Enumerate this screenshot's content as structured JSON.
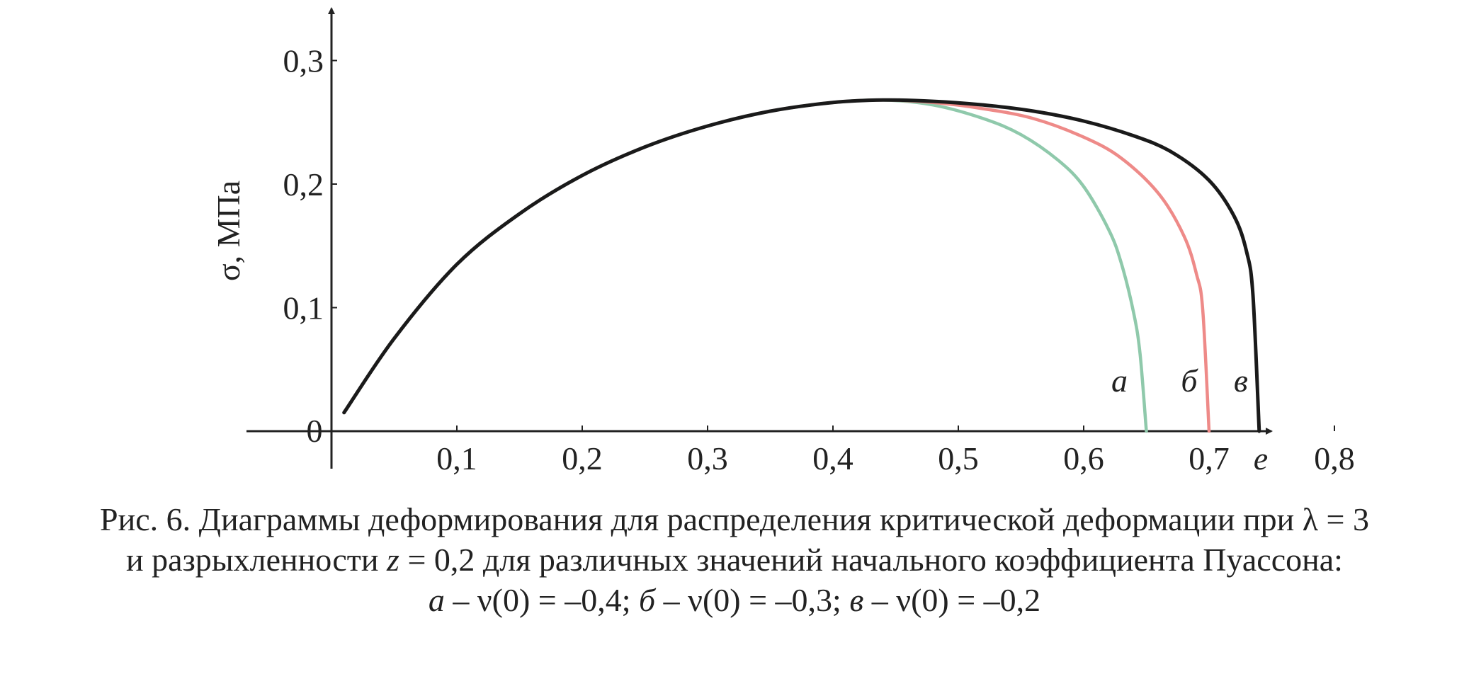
{
  "chart_data": {
    "type": "line",
    "ylabel": "σ, МПа",
    "xlabel": "e",
    "origin_label": "0",
    "xlim": [
      0,
      0.85
    ],
    "ylim": [
      0,
      0.3
    ],
    "x_ticks": [
      "0,1",
      "0,2",
      "0,3",
      "0,4",
      "0,5",
      "0,6",
      "0,7",
      "0,8"
    ],
    "x_tick_values": [
      0.1,
      0.2,
      0.3,
      0.4,
      0.5,
      0.6,
      0.7,
      0.8
    ],
    "y_ticks": [
      "0,1",
      "0,2",
      "0,3"
    ],
    "y_tick_values": [
      0.1,
      0.2,
      0.3
    ],
    "grid": false,
    "series": [
      {
        "name": "а",
        "color": "#8fc9ab",
        "x": [
          0.01,
          0.05,
          0.1,
          0.15,
          0.2,
          0.25,
          0.3,
          0.35,
          0.4,
          0.44,
          0.48,
          0.52,
          0.55,
          0.58,
          0.6,
          0.62,
          0.63,
          0.64,
          0.645,
          0.65
        ],
        "y": [
          0.015,
          0.075,
          0.135,
          0.176,
          0.207,
          0.23,
          0.247,
          0.259,
          0.266,
          0.268,
          0.264,
          0.253,
          0.24,
          0.219,
          0.198,
          0.163,
          0.136,
          0.095,
          0.062,
          0.0
        ]
      },
      {
        "name": "б",
        "color": "#ee8a88",
        "x": [
          0.01,
          0.05,
          0.1,
          0.15,
          0.2,
          0.25,
          0.3,
          0.35,
          0.4,
          0.44,
          0.48,
          0.52,
          0.56,
          0.6,
          0.63,
          0.66,
          0.68,
          0.69,
          0.695,
          0.7
        ],
        "y": [
          0.015,
          0.075,
          0.135,
          0.176,
          0.207,
          0.23,
          0.247,
          0.259,
          0.266,
          0.268,
          0.266,
          0.261,
          0.253,
          0.238,
          0.221,
          0.192,
          0.158,
          0.127,
          0.098,
          0.0
        ]
      },
      {
        "name": "в",
        "color": "#1a1a1a",
        "x": [
          0.01,
          0.05,
          0.1,
          0.15,
          0.2,
          0.25,
          0.3,
          0.35,
          0.4,
          0.44,
          0.48,
          0.52,
          0.56,
          0.6,
          0.64,
          0.67,
          0.7,
          0.72,
          0.73,
          0.735,
          0.74
        ],
        "y": [
          0.015,
          0.075,
          0.135,
          0.176,
          0.207,
          0.23,
          0.247,
          0.259,
          0.266,
          0.268,
          0.267,
          0.264,
          0.259,
          0.251,
          0.239,
          0.226,
          0.203,
          0.174,
          0.145,
          0.11,
          0.0
        ]
      }
    ]
  },
  "caption": {
    "line1_pre": "Рис. 6. Диаграммы деформирования для распределения критической деформации при λ = 3",
    "line2_pre": "и разрыхленности ",
    "line2_var": "z",
    "line2_post": " = 0,2 для различных значений начального коэффициента Пуассона:",
    "line3_a": "а",
    "line3_a_text": " – ν(0) = –0,4; ",
    "line3_b": "б",
    "line3_b_text": " – ν(0) = –0,3; ",
    "line3_c": "в",
    "line3_c_text": " – ν(0) = –0,2"
  }
}
